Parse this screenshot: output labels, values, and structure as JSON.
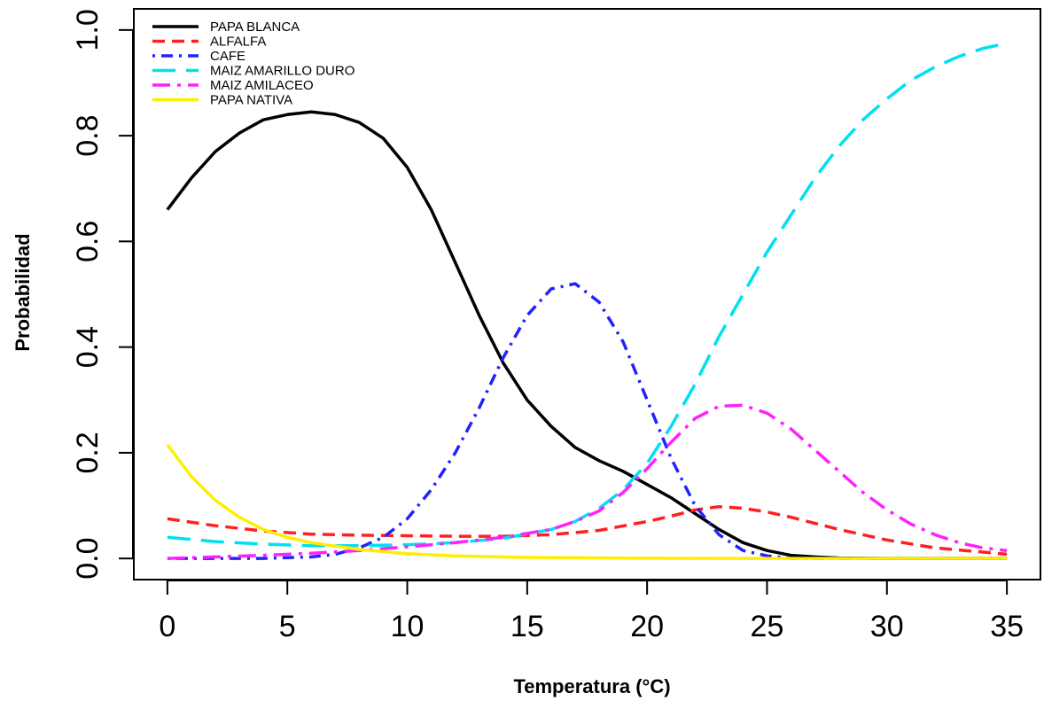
{
  "chart_data": {
    "type": "line",
    "xlabel": "Temperatura (°C)",
    "ylabel": "Probabilidad",
    "xlim": [
      -1.4,
      36.4
    ],
    "ylim": [
      -0.04,
      1.04
    ],
    "xticks": [
      "0",
      "5",
      "10",
      "15",
      "20",
      "25",
      "30",
      "35"
    ],
    "xtick_values": [
      0,
      5,
      10,
      15,
      20,
      25,
      30,
      35
    ],
    "yticks": [
      "0.0",
      "0.2",
      "0.4",
      "0.6",
      "0.8",
      "1.0"
    ],
    "ytick_values": [
      0,
      0.2,
      0.4,
      0.6,
      0.8,
      1.0
    ],
    "grid": false,
    "legend_position": "top-left",
    "series": [
      {
        "name": "PAPA BLANCA",
        "color": "#000000",
        "dash": "solid",
        "x": [
          0,
          1,
          2,
          3,
          4,
          5,
          6,
          7,
          8,
          9,
          10,
          11,
          12,
          13,
          14,
          15,
          16,
          17,
          18,
          19,
          20,
          21,
          22,
          23,
          24,
          25,
          26,
          27,
          28,
          30,
          35
        ],
        "y": [
          0.66,
          0.72,
          0.77,
          0.805,
          0.83,
          0.84,
          0.845,
          0.84,
          0.825,
          0.795,
          0.74,
          0.66,
          0.56,
          0.46,
          0.37,
          0.3,
          0.25,
          0.21,
          0.185,
          0.165,
          0.14,
          0.115,
          0.085,
          0.055,
          0.03,
          0.015,
          0.006,
          0.003,
          0.001,
          0.0,
          0.0
        ]
      },
      {
        "name": "ALFALFA",
        "color": "#ff2020",
        "dash": "dashed",
        "x": [
          0,
          2,
          4,
          6,
          8,
          10,
          12,
          14,
          16,
          18,
          20,
          21,
          22,
          23,
          24,
          25,
          26,
          28,
          30,
          32,
          35
        ],
        "y": [
          0.075,
          0.062,
          0.052,
          0.046,
          0.044,
          0.043,
          0.042,
          0.042,
          0.045,
          0.053,
          0.07,
          0.08,
          0.092,
          0.098,
          0.095,
          0.088,
          0.078,
          0.055,
          0.035,
          0.02,
          0.008
        ]
      },
      {
        "name": "CAFE",
        "color": "#2222ff",
        "dash": "dashdot",
        "x": [
          0,
          2,
          4,
          6,
          7,
          8,
          9,
          10,
          11,
          12,
          13,
          14,
          15,
          16,
          17,
          18,
          19,
          20,
          21,
          22,
          23,
          24,
          25,
          26,
          27,
          30,
          35
        ],
        "y": [
          0.0,
          0.0,
          0.0,
          0.003,
          0.008,
          0.02,
          0.04,
          0.075,
          0.13,
          0.2,
          0.285,
          0.38,
          0.46,
          0.51,
          0.52,
          0.485,
          0.41,
          0.3,
          0.19,
          0.1,
          0.045,
          0.015,
          0.005,
          0.0,
          0.0,
          0.0,
          0.0
        ]
      },
      {
        "name": "MAIZ AMARILLO DURO",
        "color": "#00e0f0",
        "dash": "longdash",
        "x": [
          0,
          2,
          4,
          6,
          8,
          10,
          12,
          14,
          16,
          17,
          18,
          19,
          20,
          21,
          22,
          23,
          24,
          25,
          26,
          27,
          28,
          29,
          30,
          31,
          32,
          33,
          34,
          35
        ],
        "y": [
          0.04,
          0.032,
          0.027,
          0.024,
          0.024,
          0.026,
          0.03,
          0.038,
          0.055,
          0.07,
          0.095,
          0.13,
          0.18,
          0.25,
          0.33,
          0.42,
          0.5,
          0.58,
          0.65,
          0.72,
          0.78,
          0.83,
          0.87,
          0.905,
          0.93,
          0.95,
          0.965,
          0.975
        ]
      },
      {
        "name": "MAIZ AMILACEO",
        "color": "#ff20ff",
        "dash": "twodash",
        "x": [
          0,
          2,
          4,
          6,
          8,
          10,
          12,
          14,
          16,
          17,
          18,
          19,
          20,
          21,
          22,
          23,
          24,
          25,
          26,
          27,
          28,
          29,
          30,
          31,
          32,
          33,
          34,
          35
        ],
        "y": [
          0.0,
          0.003,
          0.006,
          0.01,
          0.015,
          0.022,
          0.03,
          0.04,
          0.055,
          0.07,
          0.09,
          0.125,
          0.17,
          0.22,
          0.265,
          0.288,
          0.29,
          0.275,
          0.245,
          0.205,
          0.165,
          0.125,
          0.092,
          0.065,
          0.045,
          0.03,
          0.02,
          0.015
        ]
      },
      {
        "name": "PAPA NATIVA",
        "color": "#ffee00",
        "dash": "solid",
        "x": [
          0,
          1,
          2,
          3,
          4,
          5,
          6,
          8,
          10,
          12,
          15,
          20,
          25,
          30,
          35
        ],
        "y": [
          0.215,
          0.155,
          0.11,
          0.078,
          0.055,
          0.04,
          0.03,
          0.017,
          0.009,
          0.005,
          0.002,
          0.0005,
          0.0,
          0.0,
          0.0
        ]
      }
    ]
  }
}
